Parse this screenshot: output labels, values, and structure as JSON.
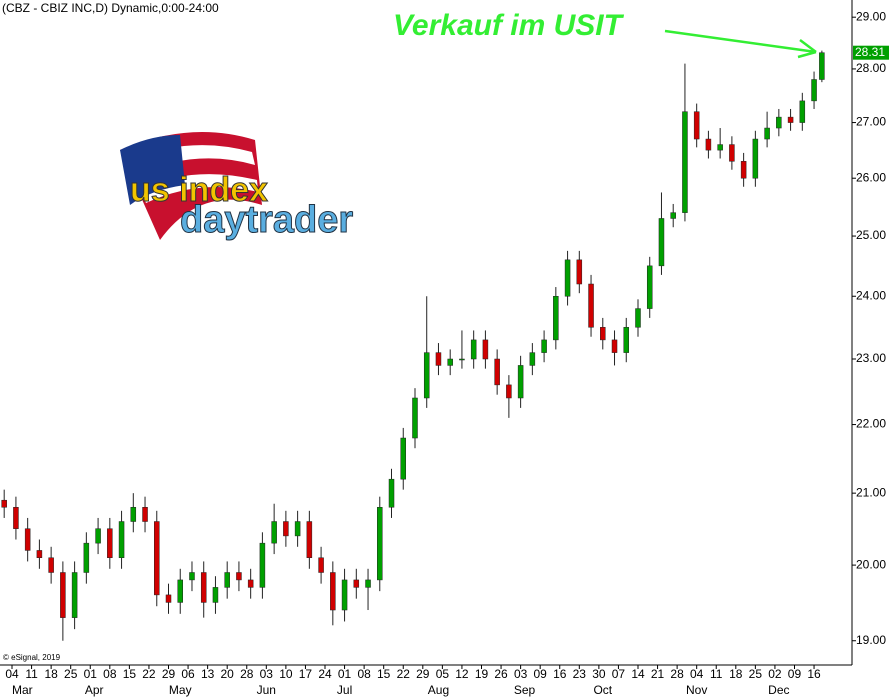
{
  "chart_data": {
    "type": "candlestick",
    "title": "(CBZ - CBIZ INC,D) Dynamic,0:00-24:00",
    "annotation": "Verkauf im USIT",
    "copyright": "© eSignal, 2019",
    "logo_text": [
      "us index",
      "daytrader"
    ],
    "up_color": "#00a000",
    "down_color": "#d00000",
    "annotation_color": "#33ee33",
    "log_scale": true,
    "x": [
      -2,
      1,
      4,
      7,
      10,
      13,
      16,
      19,
      22,
      25,
      28,
      31,
      34,
      37,
      40,
      43,
      46,
      49,
      52,
      55,
      58,
      61,
      64,
      67,
      70,
      73,
      76,
      79,
      82,
      85,
      88,
      91,
      94,
      97,
      100,
      103,
      106,
      109,
      112,
      115,
      118,
      121,
      124,
      127,
      130,
      133,
      136,
      139,
      142,
      145,
      148,
      151,
      154,
      157,
      160,
      163,
      166,
      169,
      172,
      175,
      178,
      181,
      184,
      187,
      190,
      193,
      196,
      199,
      202,
      205,
      207
    ],
    "open": [
      20.9,
      20.8,
      20.5,
      20.2,
      20.1,
      19.9,
      19.3,
      19.9,
      20.3,
      20.5,
      20.1,
      20.6,
      20.8,
      20.6,
      19.6,
      19.5,
      19.8,
      19.9,
      19.5,
      19.7,
      19.9,
      19.8,
      19.7,
      20.3,
      20.6,
      20.4,
      20.6,
      20.1,
      19.9,
      19.4,
      19.8,
      19.7,
      19.8,
      20.8,
      21.2,
      21.8,
      22.4,
      23.1,
      22.9,
      23.0,
      23.0,
      23.3,
      23.0,
      22.6,
      22.4,
      22.9,
      23.1,
      23.3,
      24.0,
      24.6,
      24.2,
      23.5,
      23.3,
      23.1,
      23.5,
      23.8,
      24.5,
      25.3,
      25.4,
      27.2,
      26.7,
      26.5,
      26.6,
      26.3,
      26.0,
      26.7,
      26.9,
      27.1,
      27.0,
      27.4,
      27.8
    ],
    "high": [
      21.05,
      20.95,
      20.65,
      20.35,
      20.25,
      20.05,
      20.05,
      20.45,
      20.65,
      20.65,
      20.75,
      21.0,
      20.95,
      20.75,
      19.75,
      19.95,
      20.05,
      20.05,
      19.85,
      20.05,
      20.05,
      19.95,
      20.45,
      20.85,
      20.75,
      20.75,
      20.75,
      20.25,
      20.05,
      19.95,
      19.95,
      19.95,
      20.95,
      21.35,
      21.95,
      22.55,
      24.0,
      23.25,
      23.15,
      23.45,
      23.45,
      23.45,
      23.15,
      22.75,
      23.05,
      23.25,
      23.45,
      24.15,
      24.75,
      24.75,
      24.35,
      23.65,
      23.45,
      23.65,
      23.95,
      24.65,
      25.75,
      25.55,
      28.1,
      27.35,
      26.85,
      26.9,
      26.75,
      26.45,
      26.85,
      27.2,
      27.25,
      27.25,
      27.55,
      27.95,
      28.35
    ],
    "low": [
      20.65,
      20.35,
      20.05,
      19.95,
      19.75,
      19.0,
      19.15,
      19.75,
      20.15,
      19.95,
      19.95,
      20.45,
      20.45,
      19.45,
      19.35,
      19.35,
      19.65,
      19.3,
      19.35,
      19.55,
      19.65,
      19.55,
      19.55,
      20.15,
      20.25,
      20.25,
      19.95,
      19.75,
      19.2,
      19.25,
      19.55,
      19.4,
      19.65,
      20.65,
      21.05,
      21.65,
      22.25,
      22.75,
      22.75,
      22.85,
      22.85,
      22.85,
      22.45,
      22.1,
      22.25,
      22.75,
      22.95,
      23.15,
      23.85,
      24.05,
      23.35,
      23.15,
      22.9,
      22.95,
      23.35,
      23.65,
      24.35,
      25.15,
      25.25,
      26.55,
      26.35,
      26.35,
      26.15,
      25.85,
      25.85,
      26.55,
      26.75,
      26.85,
      26.85,
      27.25,
      27.75
    ],
    "close": [
      20.8,
      20.5,
      20.2,
      20.1,
      19.9,
      19.3,
      19.9,
      20.3,
      20.5,
      20.1,
      20.6,
      20.8,
      20.6,
      19.6,
      19.5,
      19.8,
      19.9,
      19.5,
      19.7,
      19.9,
      19.8,
      19.7,
      20.3,
      20.6,
      20.4,
      20.6,
      20.1,
      19.9,
      19.4,
      19.8,
      19.7,
      19.8,
      20.8,
      21.2,
      21.8,
      22.4,
      23.1,
      22.9,
      23.0,
      23.0,
      23.3,
      23.0,
      22.6,
      22.4,
      22.9,
      23.1,
      23.3,
      24.0,
      24.6,
      24.2,
      23.5,
      23.3,
      23.1,
      23.5,
      23.8,
      24.5,
      25.3,
      25.4,
      27.2,
      26.7,
      26.5,
      26.6,
      26.3,
      26.0,
      26.7,
      26.9,
      27.1,
      27.0,
      27.4,
      27.8,
      28.31
    ],
    "xlim": [
      -3.07,
      214.7
    ],
    "ylim": [
      18.69,
      29.34
    ],
    "yticks": [
      {
        "value": 19,
        "label": "19.00"
      },
      {
        "value": 20,
        "label": "20.00"
      },
      {
        "value": 21,
        "label": "21.00"
      },
      {
        "value": 22,
        "label": "22.00"
      },
      {
        "value": 23,
        "label": "23.00"
      },
      {
        "value": 24,
        "label": "24.00"
      },
      {
        "value": 25,
        "label": "25.00"
      },
      {
        "value": 26,
        "label": "26.00"
      },
      {
        "value": 27,
        "label": "27.00"
      },
      {
        "value": 28,
        "label": "28.00"
      },
      {
        "value": 29,
        "label": "29.00"
      }
    ],
    "xticks": [
      {
        "value": 0,
        "label": "04"
      },
      {
        "value": 5,
        "label": "11"
      },
      {
        "value": 10,
        "label": "18"
      },
      {
        "value": 15,
        "label": "25"
      },
      {
        "value": 20,
        "label": "01"
      },
      {
        "value": 25,
        "label": "08"
      },
      {
        "value": 30,
        "label": "15"
      },
      {
        "value": 35,
        "label": "22"
      },
      {
        "value": 40,
        "label": "29"
      },
      {
        "value": 45,
        "label": "06"
      },
      {
        "value": 50,
        "label": "13"
      },
      {
        "value": 55,
        "label": "20"
      },
      {
        "value": 60,
        "label": "28"
      },
      {
        "value": 65,
        "label": "03"
      },
      {
        "value": 70,
        "label": "10"
      },
      {
        "value": 75,
        "label": "17"
      },
      {
        "value": 80,
        "label": "24"
      },
      {
        "value": 85,
        "label": "01"
      },
      {
        "value": 90,
        "label": "08"
      },
      {
        "value": 95,
        "label": "15"
      },
      {
        "value": 100,
        "label": "22"
      },
      {
        "value": 105,
        "label": "29"
      },
      {
        "value": 110,
        "label": "05"
      },
      {
        "value": 115,
        "label": "12"
      },
      {
        "value": 120,
        "label": "19"
      },
      {
        "value": 125,
        "label": "26"
      },
      {
        "value": 130,
        "label": "03"
      },
      {
        "value": 135,
        "label": "09"
      },
      {
        "value": 140,
        "label": "16"
      },
      {
        "value": 145,
        "label": "23"
      },
      {
        "value": 150,
        "label": "30"
      },
      {
        "value": 155,
        "label": "07"
      },
      {
        "value": 160,
        "label": "14"
      },
      {
        "value": 165,
        "label": "21"
      },
      {
        "value": 170,
        "label": "28"
      },
      {
        "value": 175,
        "label": "04"
      },
      {
        "value": 180,
        "label": "11"
      },
      {
        "value": 185,
        "label": "18"
      },
      {
        "value": 190,
        "label": "25"
      },
      {
        "value": 195,
        "label": "02"
      },
      {
        "value": 200,
        "label": "09"
      },
      {
        "value": 205,
        "label": "16"
      }
    ],
    "month_labels": [
      {
        "value": 0,
        "label": "Mar"
      },
      {
        "value": 21,
        "label": "Apr"
      },
      {
        "value": 43,
        "label": "May"
      },
      {
        "value": 65,
        "label": "Jun"
      },
      {
        "value": 85,
        "label": "Jul"
      },
      {
        "value": 109,
        "label": "Aug"
      },
      {
        "value": 131,
        "label": "Sep"
      },
      {
        "value": 151,
        "label": "Oct"
      },
      {
        "value": 175,
        "label": "Nov"
      },
      {
        "value": 196,
        "label": "Dec"
      }
    ]
  }
}
